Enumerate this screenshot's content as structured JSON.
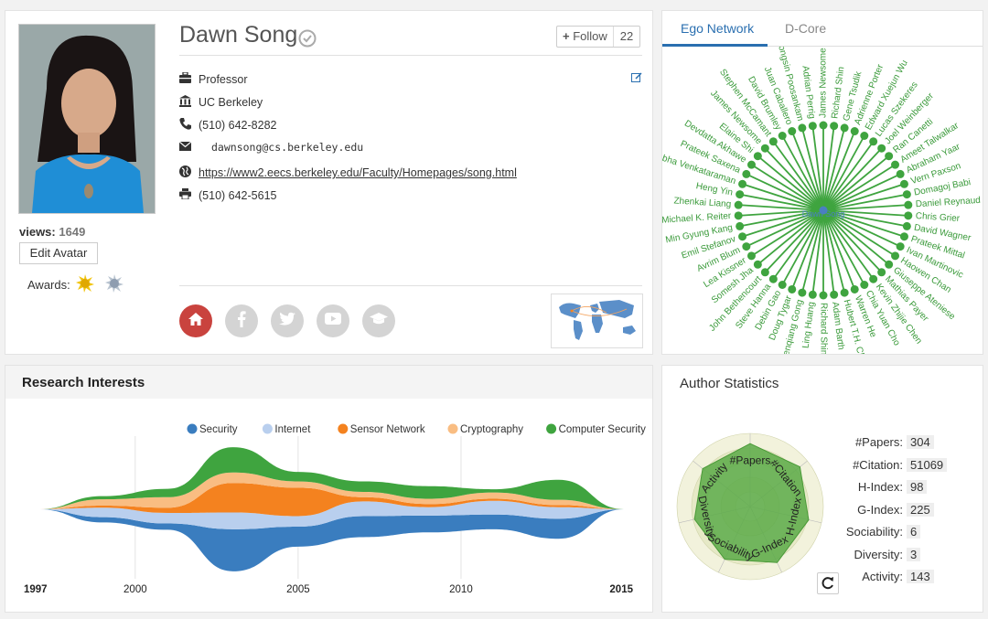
{
  "profile": {
    "name": "Dawn Song",
    "views_label": "views:",
    "views": "1649",
    "edit_avatar": "Edit Avatar",
    "awards_label": "Awards:",
    "follow_label": "Follow",
    "follow_count": "22",
    "position": "Professor",
    "affiliation": "UC Berkeley",
    "phone": "(510) 642-8282",
    "email": "dawnsong@cs.berkeley.edu",
    "homepage": "https://www2.eecs.berkeley.edu/Faculty/Homepages/song.html",
    "fax": "(510) 642-5615"
  },
  "ego": {
    "tabs": [
      "Ego Network",
      "D-Core"
    ],
    "active_tab": 0,
    "center": "Dawn Song",
    "node_color": "#3fa43f",
    "center_color": "#4a7fc1",
    "nodes": [
      "James Newsome",
      "Richard Shin",
      "Gene Tsudik",
      "Adrienne Porter",
      "Edward Xuejun Wu",
      "Lucas Szekeres",
      "Joel Weinberger",
      "Ran Canetti",
      "Ameet Talwalkar",
      "Abraham Yaar",
      "Vern Paxson",
      "Domagoj Babi",
      "Daniel Reynaud",
      "Chris Grier",
      "David Wagner",
      "Prateek Mittal",
      "Ivan Martinovic",
      "Haowen Chan",
      "Giuseppe Ateniese",
      "Mathias Payer",
      "Kevin Zhijie Chen",
      "Chia Yuan Cho",
      "Warren He",
      "Hubert T.H. Chan",
      "Adam Barth",
      "Richard Shin",
      "Ling Huang",
      "Zhenqiang Gong",
      "Doug Tygar",
      "Debin Gao",
      "Steve Hanna",
      "John Bethencourt",
      "Somesh Jha",
      "Lea Kissner",
      "Avrim Blum",
      "Emil Stefanov",
      "Min Gyung Kang",
      "Michael K. Reiter",
      "Zhenkai Liang",
      "Heng Yin",
      "Shobha Venkataraman",
      "Prateek Saxena",
      "Devdatta Akhawe",
      "Elaine Shi",
      "James Newsome",
      "Stephen McCamant",
      "David Brumley",
      "Juan Caballero",
      "Pongsin Poosankam",
      "Adrian Perrig"
    ]
  },
  "research": {
    "title": "Research Interests",
    "legend": [
      {
        "name": "Security",
        "color": "#3a7dbf"
      },
      {
        "name": "Internet",
        "color": "#b9cfee"
      },
      {
        "name": "Sensor Network",
        "color": "#f4821f"
      },
      {
        "name": "Cryptography",
        "color": "#f9bd82"
      },
      {
        "name": "Computer Security",
        "color": "#3fa43f"
      }
    ],
    "axis_ticks": [
      "1997",
      "2000",
      "2005",
      "2010",
      "2015"
    ]
  },
  "chart_data": {
    "type": "area",
    "title": "Research Interests",
    "x": [
      1997,
      1999,
      2001,
      2003,
      2005,
      2007,
      2009,
      2011,
      2013,
      2015
    ],
    "series": [
      {
        "name": "Security",
        "values": [
          0,
          0.5,
          0.6,
          4.0,
          1.9,
          2.0,
          1.6,
          1.4,
          1.9,
          0
        ]
      },
      {
        "name": "Internet",
        "values": [
          0,
          0.9,
          1.0,
          1.6,
          1.0,
          1.4,
          0.8,
          1.3,
          1.1,
          0
        ]
      },
      {
        "name": "Sensor Network",
        "values": [
          0,
          0.2,
          0.5,
          2.8,
          2.7,
          0.4,
          0.3,
          0.2,
          0.2,
          0
        ]
      },
      {
        "name": "Cryptography",
        "values": [
          0,
          0.6,
          1.0,
          1.0,
          0.6,
          0.5,
          0.5,
          0.6,
          0.5,
          0
        ]
      },
      {
        "name": "Computer Security",
        "values": [
          0,
          0.3,
          0.8,
          2.4,
          0.9,
          1.0,
          1.2,
          0.3,
          1.9,
          0
        ]
      }
    ],
    "xlim": [
      1997,
      2015
    ]
  },
  "stats": {
    "title": "Author Statistics",
    "rows": [
      {
        "key": "#Papers:",
        "value": "304"
      },
      {
        "key": "#Citation:",
        "value": "51069"
      },
      {
        "key": "H-Index:",
        "value": "98"
      },
      {
        "key": "G-Index:",
        "value": "225"
      },
      {
        "key": "Sociability:",
        "value": "6"
      },
      {
        "key": "Diversity:",
        "value": "3"
      },
      {
        "key": "Activity:",
        "value": "143"
      }
    ],
    "radar_axes": [
      "#Papers",
      "#Citation",
      "H-Index",
      "G-Index",
      "Sociability",
      "Diversity",
      "Activity"
    ],
    "radar_levels": [
      0.86,
      0.87,
      0.82,
      0.85,
      0.8,
      0.78,
      0.83
    ],
    "radar_color": "#5aaa46"
  }
}
